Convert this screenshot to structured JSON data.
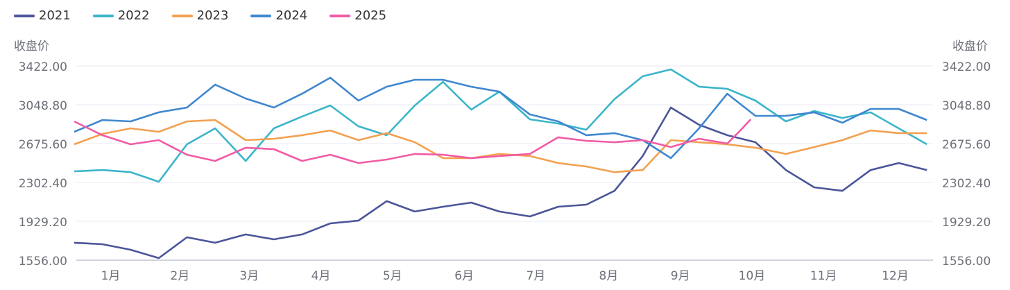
{
  "chart_data": {
    "type": "line",
    "y_axis_name": "收盘价",
    "ylim": [
      1556.0,
      3422.0
    ],
    "y_ticks": [
      "1556.00",
      "1929.20",
      "2302.40",
      "2675.60",
      "3048.80",
      "3422.00"
    ],
    "x_tick_labels": [
      "1月",
      "2月",
      "3月",
      "4月",
      "5月",
      "6月",
      "7月",
      "8月",
      "9月",
      "10月",
      "11月",
      "12月"
    ],
    "grid": true,
    "legend_position": "top-left",
    "dual_y_axis": true,
    "series": [
      {
        "name": "2021",
        "color": "#4b5599",
        "x": [
          "01-01",
          "01-13",
          "01-25",
          "02-06",
          "02-18",
          "03-02",
          "03-15",
          "03-27",
          "04-08",
          "04-20",
          "05-02",
          "05-14",
          "05-26",
          "06-07",
          "06-19",
          "07-01",
          "07-14",
          "07-26",
          "08-07",
          "08-19",
          "08-31",
          "09-12",
          "09-24",
          "10-06",
          "10-18",
          "10-31",
          "11-12",
          "11-24",
          "12-06",
          "12-18",
          "12-30"
        ],
        "values": [
          1723,
          1709,
          1656,
          1576,
          1776,
          1723,
          1803,
          1756,
          1803,
          1909,
          1936,
          2123,
          2023,
          2069,
          2109,
          2023,
          1976,
          2069,
          2089,
          2222,
          2556,
          3022,
          2856,
          2756,
          2689,
          2422,
          2256,
          2222,
          2422,
          2489,
          2422
        ]
      },
      {
        "name": "2022",
        "color": "#3bb5c9",
        "x": [
          "01-01",
          "01-13",
          "01-25",
          "02-06",
          "02-18",
          "03-02",
          "03-15",
          "03-27",
          "04-08",
          "04-20",
          "05-02",
          "05-14",
          "05-26",
          "06-07",
          "06-19",
          "07-01",
          "07-14",
          "07-26",
          "08-07",
          "08-19",
          "08-31",
          "09-12",
          "09-24",
          "10-06",
          "10-18",
          "10-31",
          "11-12",
          "11-24",
          "12-06",
          "12-18",
          "12-30"
        ],
        "values": [
          2409,
          2422,
          2402,
          2309,
          2669,
          2822,
          2509,
          2822,
          2936,
          3042,
          2842,
          2756,
          3042,
          3269,
          3002,
          3175,
          2909,
          2869,
          2809,
          3102,
          3322,
          3389,
          3222,
          3202,
          3089,
          2889,
          2989,
          2922,
          2976,
          2822,
          2669
        ]
      },
      {
        "name": "2023",
        "color": "#f3a04f",
        "x": [
          "01-01",
          "01-13",
          "01-25",
          "02-06",
          "02-18",
          "03-02",
          "03-15",
          "03-27",
          "04-08",
          "04-20",
          "05-02",
          "05-14",
          "05-26",
          "06-07",
          "06-19",
          "07-01",
          "07-14",
          "07-26",
          "08-07",
          "08-19",
          "08-31",
          "09-12",
          "09-24",
          "10-06",
          "10-18",
          "10-31",
          "11-12",
          "11-24",
          "12-06",
          "12-18",
          "12-30"
        ],
        "values": [
          2669,
          2769,
          2822,
          2789,
          2889,
          2902,
          2709,
          2722,
          2756,
          2802,
          2709,
          2776,
          2689,
          2536,
          2536,
          2576,
          2556,
          2489,
          2456,
          2402,
          2422,
          2709,
          2689,
          2669,
          2636,
          2576,
          2642,
          2709,
          2802,
          2776,
          2776
        ]
      },
      {
        "name": "2024",
        "color": "#3f87d0",
        "x": [
          "01-01",
          "01-13",
          "01-25",
          "02-06",
          "02-18",
          "03-02",
          "03-15",
          "03-27",
          "04-08",
          "04-20",
          "05-02",
          "05-14",
          "05-26",
          "06-07",
          "06-19",
          "07-01",
          "07-14",
          "07-26",
          "08-07",
          "08-19",
          "08-31",
          "09-12",
          "09-24",
          "10-06",
          "10-18",
          "10-31",
          "11-12",
          "11-24",
          "12-06",
          "12-18",
          "12-30"
        ],
        "values": [
          2789,
          2902,
          2889,
          2976,
          3022,
          3242,
          3109,
          3022,
          3155,
          3309,
          3089,
          3222,
          3289,
          3289,
          3222,
          3175,
          2956,
          2889,
          2756,
          2776,
          2709,
          2536,
          2822,
          3155,
          2942,
          2942,
          2976,
          2876,
          3009,
          3009,
          2902
        ]
      },
      {
        "name": "2025",
        "color": "#f15ba5",
        "x": [
          "01-01",
          "01-13",
          "01-25",
          "02-06",
          "02-18",
          "03-02",
          "03-15",
          "03-27",
          "04-08",
          "04-20",
          "05-02",
          "05-14",
          "05-26",
          "06-07",
          "06-19",
          "07-01",
          "07-14",
          "07-26",
          "08-07",
          "08-19",
          "08-31",
          "09-12",
          "09-24",
          "10-06",
          "10-11",
          "10-16"
        ],
        "values": [
          2889,
          2756,
          2669,
          2709,
          2569,
          2509,
          2636,
          2622,
          2509,
          2569,
          2489,
          2522,
          2576,
          2569,
          2536,
          2556,
          2576,
          2736,
          2702,
          2689,
          2709,
          2642,
          2722,
          2676,
          2789,
          2909
        ]
      }
    ]
  },
  "colors": {
    "axis_text": "#6e7079",
    "grid": "#e8eaf5",
    "axis_line": "#c0c3d6"
  }
}
